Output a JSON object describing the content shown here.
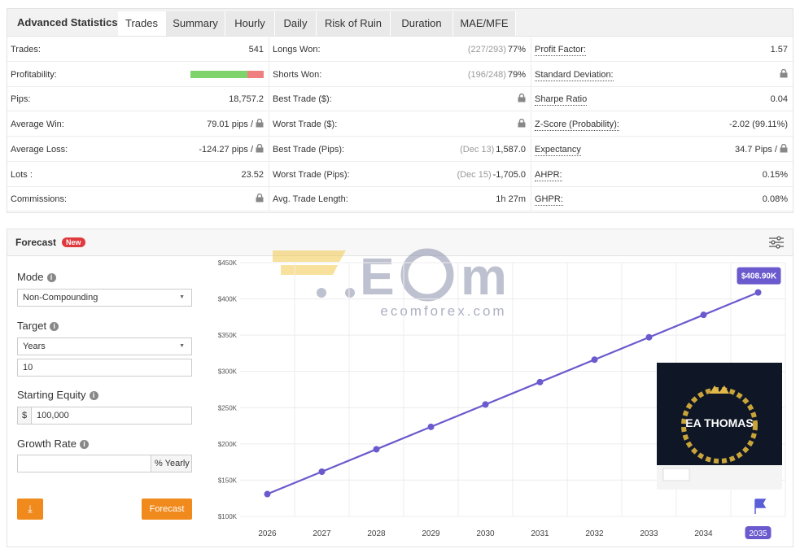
{
  "panel_title": "Advanced Statistics",
  "tabs": [
    "Trades",
    "Summary",
    "Hourly",
    "Daily",
    "Risk of Ruin",
    "Duration",
    "MAE/MFE"
  ],
  "active_tab": 0,
  "stats": {
    "columns": [
      [
        {
          "label": "Trades:",
          "value": "541"
        },
        {
          "label": "Profitability:",
          "won_percent": 78
        },
        {
          "label": "Pips:",
          "value": "18,757.2"
        },
        {
          "label": "Average Win:",
          "value": "79.01 pips /",
          "locked": true
        },
        {
          "label": "Average Loss:",
          "value": "-124.27 pips /",
          "locked": true
        },
        {
          "label": "Lots :",
          "value": "23.52"
        },
        {
          "label": "Commissions:",
          "locked": true
        }
      ],
      [
        {
          "label": "Longs Won:",
          "note": "(227/293)",
          "value": "77%"
        },
        {
          "label": "Shorts Won:",
          "note": "(196/248)",
          "value": "79%"
        },
        {
          "label": "Best Trade ($):",
          "locked": true
        },
        {
          "label": "Worst Trade ($):",
          "locked": true
        },
        {
          "label": "Best Trade (Pips):",
          "note": "(Dec 13)",
          "value": "1,587.0"
        },
        {
          "label": "Worst Trade (Pips):",
          "note": "(Dec 15)",
          "value": "-1,705.0"
        },
        {
          "label": "Avg. Trade Length:",
          "value": "1h 27m"
        }
      ],
      [
        {
          "label": "Profit Factor:",
          "value": "1.57"
        },
        {
          "label": "Standard Deviation:",
          "locked": true
        },
        {
          "label": "Sharpe Ratio",
          "value": "0.04"
        },
        {
          "label": "Z-Score (Probability):",
          "value": "-2.02 (99.11%)"
        },
        {
          "label": "Expectancy",
          "value": "34.7 Pips /",
          "locked": true
        },
        {
          "label": "AHPR:",
          "value": "0.15%"
        },
        {
          "label": "GHPR:",
          "value": "0.08%"
        }
      ]
    ]
  },
  "forecast": {
    "title": "Forecast",
    "badge": "New",
    "mode_label": "Mode",
    "mode_value": "Non-Compounding",
    "target_label": "Target",
    "target_unit": "Years",
    "target_value": "10",
    "equity_label": "Starting Equity",
    "equity_prefix": "$",
    "equity_value": "100,000",
    "growth_label": "Growth Rate",
    "growth_suffix": "% Yearly",
    "button": "Forecast",
    "watermark": "ecomforex.com",
    "ad_caption": "EA THOMAS"
  },
  "chart_data": {
    "type": "line",
    "categories": [
      "2026",
      "2027",
      "2028",
      "2029",
      "2030",
      "2031",
      "2032",
      "2033",
      "2034",
      "2035"
    ],
    "values": [
      130800,
      161700,
      192600,
      223500,
      254400,
      285300,
      316200,
      347100,
      378000,
      408900
    ],
    "value_labels": [
      null,
      null,
      null,
      null,
      null,
      null,
      null,
      null,
      null,
      "$408.90K"
    ],
    "color": "#6a5acd",
    "ylim": [
      100000,
      450000
    ],
    "yticks": [
      {
        "value": 100000,
        "label": "$100K"
      },
      {
        "value": 150000,
        "label": "$150K"
      },
      {
        "value": 200000,
        "label": "$200K"
      },
      {
        "value": 250000,
        "label": "$250K"
      },
      {
        "value": 300000,
        "label": "$300K"
      },
      {
        "value": 350000,
        "label": "$350K"
      },
      {
        "value": 400000,
        "label": "$400K"
      },
      {
        "value": 450000,
        "label": "$450K"
      }
    ],
    "grid": true
  }
}
